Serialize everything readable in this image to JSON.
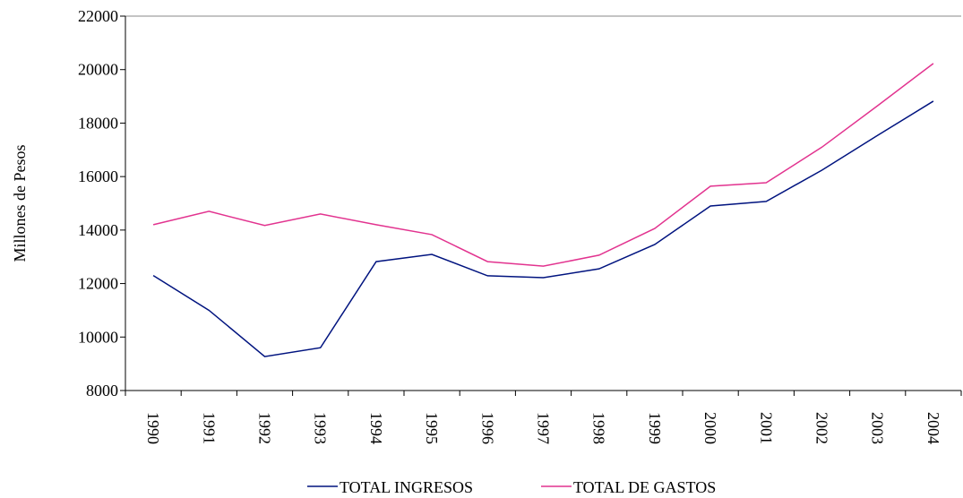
{
  "chart_data": {
    "type": "line",
    "y_label": "Millones de Pesos",
    "categories": [
      "1990",
      "1991",
      "1992",
      "1993",
      "1994",
      "1995",
      "1996",
      "1997",
      "1998",
      "1999",
      "2000",
      "2001",
      "2002",
      "2003",
      "2004"
    ],
    "series": [
      {
        "name": "TOTAL INGRESOS",
        "color": "#00137f",
        "values": [
          12300,
          11000,
          9270,
          9600,
          12820,
          13090,
          12290,
          12220,
          12550,
          13460,
          14900,
          15070,
          16240,
          17540,
          18820
        ]
      },
      {
        "name": "TOTAL DE GASTOS",
        "color": "#e2338f",
        "values": [
          14200,
          14700,
          14170,
          14600,
          14200,
          13830,
          12820,
          12650,
          13060,
          14060,
          15640,
          15770,
          17100,
          18650,
          20230
        ]
      }
    ],
    "ylim": [
      8000,
      22000
    ],
    "yticks": [
      8000,
      10000,
      12000,
      14000,
      16000,
      18000,
      20000,
      22000
    ],
    "legend": "bottom"
  }
}
